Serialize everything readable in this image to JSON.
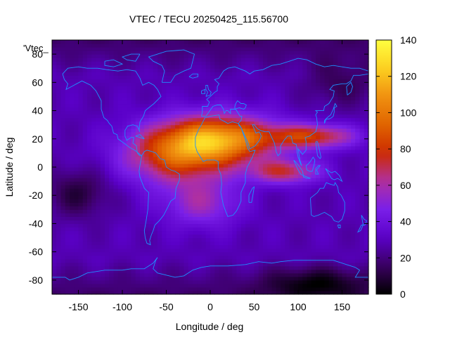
{
  "chart_data": {
    "type": "heatmap",
    "title": "VTEC / TECU 20250425_115.56700",
    "xlabel": "Longitude / deg",
    "ylabel": "Latitude / deg",
    "key_label": "'Vtec_",
    "xlim": [
      -180,
      180
    ],
    "ylim": [
      -90,
      90
    ],
    "x_ticks": [
      -150,
      -100,
      -50,
      0,
      50,
      100,
      150
    ],
    "y_ticks": [
      -80,
      -60,
      -40,
      -20,
      0,
      20,
      40,
      60,
      80
    ],
    "colorbar": {
      "min": 0,
      "max": 140,
      "ticks": [
        0,
        20,
        40,
        60,
        80,
        100,
        120,
        140
      ]
    },
    "palette": [
      "#000000",
      "#3a0060",
      "#5a00c8",
      "#7a1fe8",
      "#b030a0",
      "#cc2a00",
      "#e06400",
      "#f09010",
      "#fcd020",
      "#ffff40"
    ],
    "coastline_color": "#1e90ff",
    "tec_field": {
      "base": 28,
      "features": [
        {
          "lon": 10,
          "lat": 20,
          "peak": 78,
          "sigma_lon": 45,
          "sigma_lat": 12
        },
        {
          "lon": -40,
          "lat": 8,
          "peak": 50,
          "sigma_lon": 42,
          "sigma_lat": 14
        },
        {
          "lon": -10,
          "lat": -25,
          "peak": 28,
          "sigma_lon": 30,
          "sigma_lat": 12
        },
        {
          "lon": 115,
          "lat": 22,
          "peak": 50,
          "sigma_lon": 35,
          "sigma_lat": 6
        },
        {
          "lon": 85,
          "lat": -3,
          "peak": 42,
          "sigma_lon": 28,
          "sigma_lat": 6
        },
        {
          "lon": -150,
          "lat": -18,
          "peak": -18,
          "sigma_lon": 25,
          "sigma_lat": 12
        },
        {
          "lon": 150,
          "lat": 60,
          "peak": -14,
          "sigma_lon": 30,
          "sigma_lat": 12
        },
        {
          "lon": 120,
          "lat": -82,
          "peak": -20,
          "sigma_lon": 40,
          "sigma_lat": 8
        }
      ]
    }
  }
}
